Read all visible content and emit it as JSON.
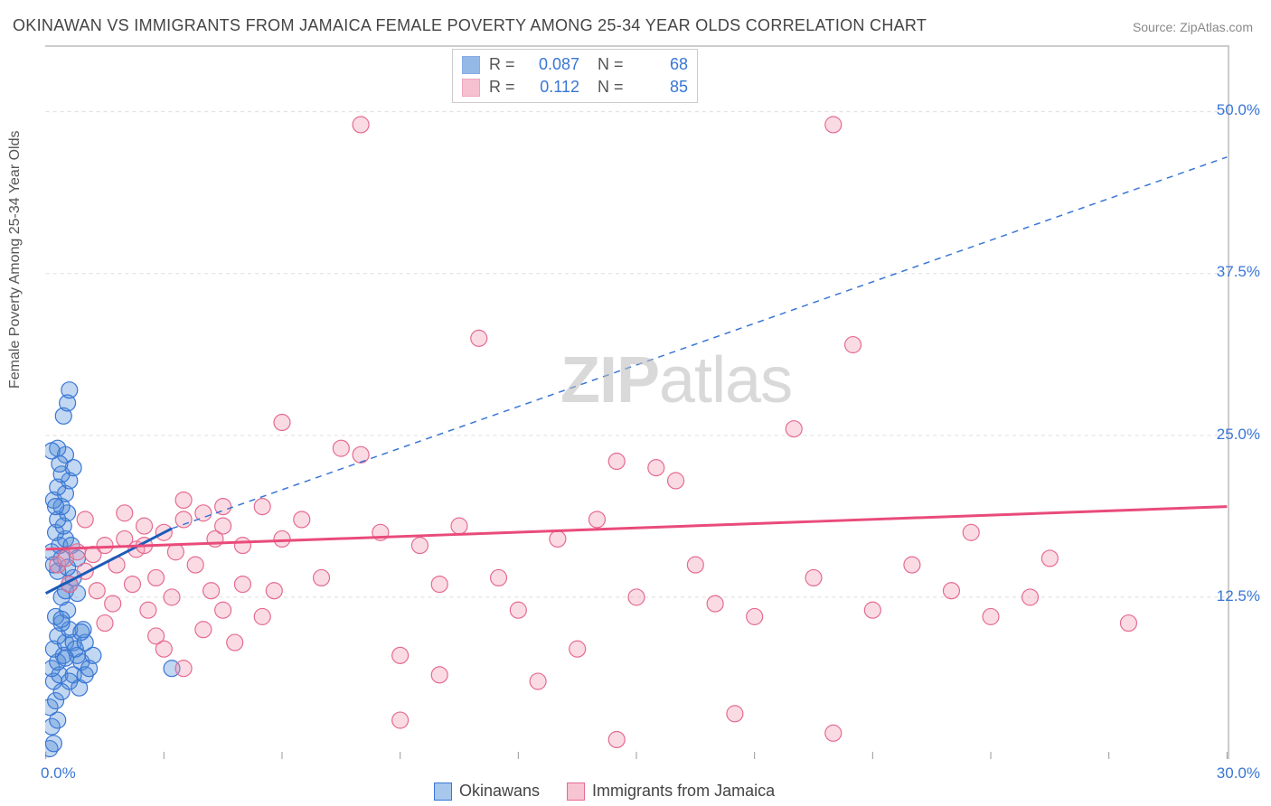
{
  "title": "OKINAWAN VS IMMIGRANTS FROM JAMAICA FEMALE POVERTY AMONG 25-34 YEAR OLDS CORRELATION CHART",
  "source": "Source: ZipAtlas.com",
  "ylabel": "Female Poverty Among 25-34 Year Olds",
  "watermark": "ZIPatlas",
  "chart": {
    "type": "scatter",
    "background_color": "#ffffff",
    "grid_color": "#dddddd",
    "axis_border_color": "#cccccc",
    "xlim": [
      0,
      30
    ],
    "ylim": [
      0,
      55
    ],
    "x_ticks": [
      0,
      3,
      6,
      9,
      12,
      15,
      18,
      21,
      24,
      27,
      30
    ],
    "x_tick_labels": {
      "0": "0.0%",
      "30": "30.0%"
    },
    "y_gridlines": [
      12.5,
      25,
      37.5,
      50
    ],
    "y_tick_labels": {
      "12.5": "12.5%",
      "25": "25.0%",
      "37.5": "37.5%",
      "50": "50.0%"
    },
    "axis_label_color": "#3976d6",
    "axis_label_fontsize": 17,
    "marker_radius": 9,
    "marker_fill_opacity": 0.35,
    "series": [
      {
        "name": "Okinawans",
        "color": "#4f8bd6",
        "stroke": "#3976d6",
        "r_value": "0.087",
        "n_value": "68",
        "trend": {
          "x1": 0,
          "y1": 12.8,
          "x2": 3.2,
          "y2": 17.8,
          "solid_color": "#1b5bb8",
          "width": 3
        },
        "trend_ext": {
          "x1": 3.2,
          "y1": 17.8,
          "x2": 30,
          "y2": 46.5,
          "dash": true,
          "color": "#3976d6",
          "width": 1.5
        },
        "points": [
          [
            0.1,
            0.8
          ],
          [
            0.2,
            1.2
          ],
          [
            0.15,
            2.5
          ],
          [
            0.3,
            3.0
          ],
          [
            0.1,
            4.0
          ],
          [
            0.25,
            4.5
          ],
          [
            0.4,
            5.2
          ],
          [
            0.2,
            6.0
          ],
          [
            0.35,
            6.5
          ],
          [
            0.15,
            7.0
          ],
          [
            0.3,
            7.5
          ],
          [
            0.45,
            8.0
          ],
          [
            0.2,
            8.5
          ],
          [
            0.5,
            9.0
          ],
          [
            0.3,
            9.5
          ],
          [
            0.6,
            10.0
          ],
          [
            0.4,
            10.5
          ],
          [
            0.25,
            11.0
          ],
          [
            0.55,
            11.5
          ],
          [
            0.7,
            9.0
          ],
          [
            0.8,
            8.0
          ],
          [
            0.9,
            7.5
          ],
          [
            0.7,
            6.5
          ],
          [
            0.6,
            6.0
          ],
          [
            0.85,
            5.5
          ],
          [
            0.75,
            8.5
          ],
          [
            0.3,
            14.5
          ],
          [
            0.2,
            15.0
          ],
          [
            0.4,
            15.5
          ],
          [
            0.15,
            16.0
          ],
          [
            0.35,
            16.5
          ],
          [
            0.5,
            17.0
          ],
          [
            0.25,
            17.5
          ],
          [
            0.45,
            18.0
          ],
          [
            0.3,
            18.5
          ],
          [
            0.55,
            19.0
          ],
          [
            0.4,
            19.5
          ],
          [
            0.2,
            20.0
          ],
          [
            0.5,
            20.5
          ],
          [
            0.3,
            21.0
          ],
          [
            0.6,
            21.5
          ],
          [
            0.4,
            22.0
          ],
          [
            0.7,
            22.5
          ],
          [
            0.5,
            23.5
          ],
          [
            0.3,
            24.0
          ],
          [
            0.45,
            26.5
          ],
          [
            0.55,
            27.5
          ],
          [
            0.6,
            28.5
          ],
          [
            0.4,
            12.5
          ],
          [
            0.5,
            13.0
          ],
          [
            0.6,
            13.5
          ],
          [
            0.7,
            14.0
          ],
          [
            0.8,
            12.8
          ],
          [
            1.0,
            6.5
          ],
          [
            1.1,
            7.0
          ],
          [
            1.0,
            9.0
          ],
          [
            1.2,
            8.0
          ],
          [
            0.95,
            10.0
          ],
          [
            3.2,
            7.0
          ],
          [
            0.4,
            10.8
          ],
          [
            0.55,
            14.8
          ],
          [
            0.25,
            19.5
          ],
          [
            0.65,
            16.5
          ],
          [
            0.8,
            15.5
          ],
          [
            0.35,
            22.8
          ],
          [
            0.15,
            23.8
          ],
          [
            0.5,
            7.8
          ],
          [
            0.9,
            9.8
          ]
        ]
      },
      {
        "name": "Immigrants from Jamaica",
        "color": "#f099b3",
        "stroke": "#e56b91",
        "r_value": "0.112",
        "n_value": "85",
        "trend": {
          "x1": 0,
          "y1": 16.2,
          "x2": 30,
          "y2": 19.5,
          "solid_color": "#e94b7a",
          "width": 3
        },
        "points": [
          [
            0.3,
            15.0
          ],
          [
            0.5,
            15.5
          ],
          [
            0.8,
            16.0
          ],
          [
            1.0,
            14.5
          ],
          [
            1.2,
            15.8
          ],
          [
            1.5,
            16.5
          ],
          [
            1.8,
            15.0
          ],
          [
            2.0,
            17.0
          ],
          [
            2.3,
            16.2
          ],
          [
            2.5,
            18.0
          ],
          [
            2.8,
            14.0
          ],
          [
            3.0,
            17.5
          ],
          [
            3.3,
            16.0
          ],
          [
            3.5,
            18.5
          ],
          [
            3.8,
            15.0
          ],
          [
            4.0,
            19.0
          ],
          [
            4.3,
            17.0
          ],
          [
            4.5,
            18.0
          ],
          [
            5.0,
            16.5
          ],
          [
            5.5,
            19.5
          ],
          [
            6.0,
            17.0
          ],
          [
            0.6,
            13.5
          ],
          [
            1.3,
            13.0
          ],
          [
            2.2,
            13.5
          ],
          [
            1.7,
            12.0
          ],
          [
            2.6,
            11.5
          ],
          [
            3.2,
            12.5
          ],
          [
            4.0,
            10.0
          ],
          [
            4.8,
            9.0
          ],
          [
            5.5,
            11.0
          ],
          [
            3.0,
            8.5
          ],
          [
            3.5,
            7.0
          ],
          [
            4.5,
            11.5
          ],
          [
            2.5,
            16.5
          ],
          [
            5.0,
            13.5
          ],
          [
            5.8,
            13.0
          ],
          [
            6.5,
            18.5
          ],
          [
            7.0,
            14.0
          ],
          [
            7.5,
            24.0
          ],
          [
            8.0,
            23.5
          ],
          [
            8.5,
            17.5
          ],
          [
            9.0,
            8.0
          ],
          [
            9.0,
            3.0
          ],
          [
            9.5,
            16.5
          ],
          [
            10.0,
            13.5
          ],
          [
            10.5,
            18.0
          ],
          [
            10.0,
            6.5
          ],
          [
            11.0,
            32.5
          ],
          [
            11.5,
            14.0
          ],
          [
            12.0,
            11.5
          ],
          [
            12.5,
            6.0
          ],
          [
            13.0,
            17.0
          ],
          [
            13.5,
            8.5
          ],
          [
            14.0,
            18.5
          ],
          [
            14.5,
            1.5
          ],
          [
            15.0,
            12.5
          ],
          [
            15.5,
            22.5
          ],
          [
            16.0,
            21.5
          ],
          [
            16.5,
            15.0
          ],
          [
            17.0,
            12.0
          ],
          [
            17.5,
            3.5
          ],
          [
            18.0,
            11.0
          ],
          [
            19.0,
            25.5
          ],
          [
            19.5,
            14.0
          ],
          [
            20.0,
            2.0
          ],
          [
            20.5,
            32.0
          ],
          [
            21.0,
            11.5
          ],
          [
            22.0,
            15.0
          ],
          [
            23.0,
            13.0
          ],
          [
            23.5,
            17.5
          ],
          [
            24.0,
            11.0
          ],
          [
            25.0,
            12.5
          ],
          [
            25.5,
            15.5
          ],
          [
            27.5,
            10.5
          ],
          [
            8.0,
            49.0
          ],
          [
            20.0,
            49.0
          ],
          [
            6.0,
            26.0
          ],
          [
            14.5,
            23.0
          ],
          [
            1.0,
            18.5
          ],
          [
            2.0,
            19.0
          ],
          [
            3.5,
            20.0
          ],
          [
            4.5,
            19.5
          ],
          [
            1.5,
            10.5
          ],
          [
            2.8,
            9.5
          ],
          [
            4.2,
            13.0
          ]
        ]
      }
    ]
  },
  "legend_bottom": [
    {
      "label": "Okinawans",
      "fill": "#a8c7ed",
      "stroke": "#3976d6"
    },
    {
      "label": "Immigrants from Jamaica",
      "fill": "#f7c4d3",
      "stroke": "#e56b91"
    }
  ]
}
